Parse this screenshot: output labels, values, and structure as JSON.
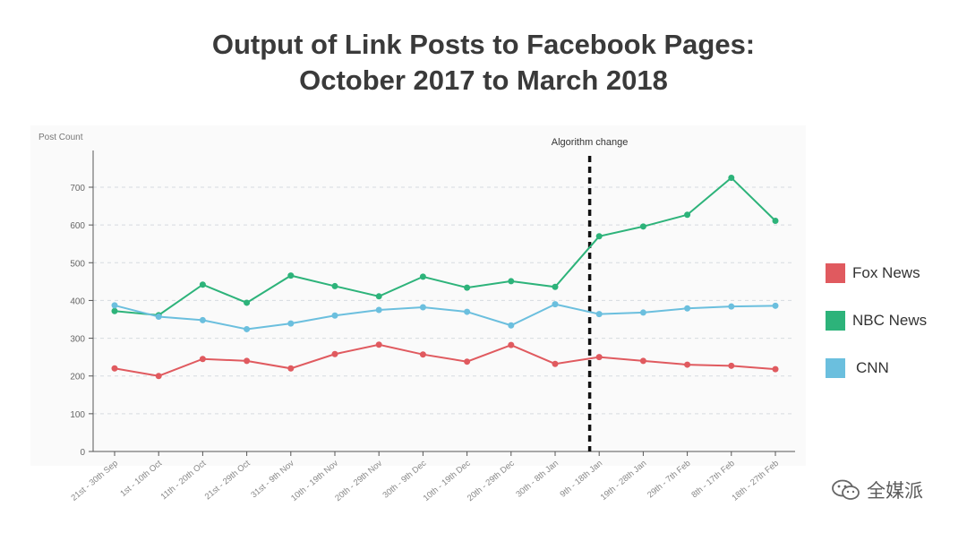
{
  "title": {
    "line1": "Output of Link Posts to Facebook Pages:",
    "line2": "October 2017 to March 2018"
  },
  "chart_data": {
    "type": "line",
    "ylabel": "Post Count",
    "xlabel": "",
    "ylim": [
      0,
      800
    ],
    "yticks": [
      0,
      100,
      200,
      300,
      400,
      500,
      600,
      700
    ],
    "grid": true,
    "legend_position": "right",
    "categories": [
      "21st - 30th Sep",
      "1st - 10th Oct",
      "11th - 20th Oct",
      "21st - 29th Oct",
      "31st - 9th Nov",
      "10th - 19th Nov",
      "20th - 29th Nov",
      "30th - 9th Dec",
      "10th - 19th Dec",
      "20th - 29th Dec",
      "30th - 8th Jan",
      "9th - 18th Jan",
      "19th - 28th Jan",
      "29th - 7th Feb",
      "8th - 17th Feb",
      "18th - 27th Feb"
    ],
    "series": [
      {
        "name": "Fox News",
        "color": "#e05a5f",
        "values": [
          220,
          200,
          245,
          240,
          220,
          258,
          283,
          257,
          238,
          282,
          232,
          250,
          240,
          230,
          227,
          218
        ]
      },
      {
        "name": "NBC News",
        "color": "#2db37a",
        "values": [
          372,
          361,
          442,
          394,
          466,
          438,
          411,
          463,
          434,
          451,
          436,
          570,
          596,
          627,
          725,
          611
        ]
      },
      {
        "name": "CNN",
        "color": "#6bbfde",
        "values": [
          387,
          357,
          348,
          324,
          339,
          360,
          375,
          382,
          370,
          334,
          390,
          364,
          368,
          379,
          384,
          386
        ]
      }
    ],
    "annotation": {
      "label": "Algorithm change",
      "position_category_index": 11
    }
  },
  "watermark": {
    "text": "全媒派"
  }
}
